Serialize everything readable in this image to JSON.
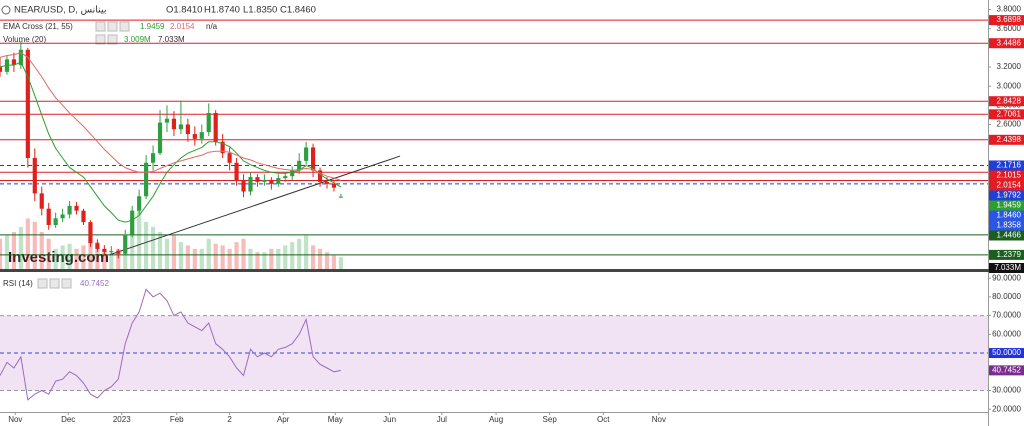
{
  "chart_data": [
    {
      "type": "candlestick",
      "title": "NEAR/USD, D, بينانس",
      "ohlc_legend": [
        "O1.8410",
        "H1.8740",
        "L1.8350",
        "C1.8460"
      ],
      "up_color": "#2e9e41",
      "down_color": "#e0201b",
      "candles": [
        [
          3.2,
          3.3,
          3.1,
          3.15
        ],
        [
          3.15,
          3.32,
          3.12,
          3.28
        ],
        [
          3.28,
          3.35,
          3.15,
          3.22
        ],
        [
          3.22,
          3.47,
          3.18,
          3.38
        ],
        [
          3.38,
          3.4,
          2.15,
          2.25
        ],
        [
          2.25,
          2.35,
          1.8,
          1.88
        ],
        [
          1.88,
          1.95,
          1.65,
          1.72
        ],
        [
          1.72,
          1.78,
          1.5,
          1.55
        ],
        [
          1.55,
          1.68,
          1.52,
          1.62
        ],
        [
          1.62,
          1.72,
          1.58,
          1.66
        ],
        [
          1.66,
          1.8,
          1.62,
          1.75
        ],
        [
          1.75,
          1.79,
          1.66,
          1.7
        ],
        [
          1.7,
          1.72,
          1.55,
          1.58
        ],
        [
          1.58,
          1.6,
          1.32,
          1.36
        ],
        [
          1.36,
          1.4,
          1.27,
          1.3
        ],
        [
          1.3,
          1.34,
          1.24,
          1.27
        ],
        [
          1.27,
          1.33,
          1.23,
          1.28
        ],
        [
          1.28,
          1.3,
          1.2,
          1.25
        ],
        [
          1.25,
          1.5,
          1.24,
          1.45
        ],
        [
          1.45,
          1.75,
          1.42,
          1.7
        ],
        [
          1.7,
          1.92,
          1.66,
          1.85
        ],
        [
          1.85,
          2.28,
          1.82,
          2.2
        ],
        [
          2.2,
          2.38,
          2.12,
          2.3
        ],
        [
          2.3,
          2.75,
          2.28,
          2.62
        ],
        [
          2.62,
          2.8,
          2.52,
          2.66
        ],
        [
          2.66,
          2.74,
          2.48,
          2.55
        ],
        [
          2.55,
          2.85,
          2.5,
          2.6
        ],
        [
          2.6,
          2.66,
          2.42,
          2.5
        ],
        [
          2.5,
          2.58,
          2.38,
          2.45
        ],
        [
          2.45,
          2.6,
          2.4,
          2.52
        ],
        [
          2.52,
          2.82,
          2.48,
          2.72
        ],
        [
          2.72,
          2.75,
          2.38,
          2.42
        ],
        [
          2.42,
          2.5,
          2.25,
          2.3
        ],
        [
          2.3,
          2.36,
          2.12,
          2.2
        ],
        [
          2.2,
          2.25,
          1.96,
          2.02
        ],
        [
          2.02,
          2.08,
          1.84,
          1.9
        ],
        [
          1.9,
          2.1,
          1.86,
          2.05
        ],
        [
          2.05,
          2.08,
          1.95,
          2.0
        ],
        [
          2.0,
          2.08,
          1.96,
          2.02
        ],
        [
          2.02,
          2.05,
          1.92,
          1.98
        ],
        [
          1.98,
          2.08,
          1.95,
          2.04
        ],
        [
          2.04,
          2.1,
          2.0,
          2.06
        ],
        [
          2.06,
          2.16,
          2.02,
          2.12
        ],
        [
          2.12,
          2.3,
          2.08,
          2.22
        ],
        [
          2.22,
          2.42,
          2.18,
          2.36
        ],
        [
          2.36,
          2.4,
          2.05,
          2.12
        ],
        [
          2.12,
          2.15,
          1.95,
          2.0
        ],
        [
          2.0,
          2.05,
          1.93,
          1.98
        ],
        [
          1.98,
          2.02,
          1.9,
          1.94
        ],
        [
          1.841,
          1.874,
          1.835,
          1.846
        ]
      ],
      "ema": {
        "name": "EMA Cross (21, 55)",
        "status": "n/a",
        "series": [
          {
            "color": "#2ca02c",
            "value_label": "1.9459",
            "values": [
              3.2,
              3.22,
              3.22,
              3.25,
              3.1,
              2.9,
              2.7,
              2.5,
              2.35,
              2.25,
              2.15,
              2.1,
              2.05,
              1.95,
              1.85,
              1.75,
              1.68,
              1.6,
              1.58,
              1.6,
              1.65,
              1.75,
              1.85,
              1.98,
              2.1,
              2.18,
              2.25,
              2.3,
              2.33,
              2.36,
              2.42,
              2.42,
              2.4,
              2.37,
              2.3,
              2.22,
              2.18,
              2.15,
              2.12,
              2.1,
              2.09,
              2.09,
              2.1,
              2.12,
              2.17,
              2.14,
              2.08,
              2.03,
              1.99,
              1.9459
            ]
          },
          {
            "color": "#e06a6a",
            "value_label": "2.0154",
            "values": [
              3.3,
              3.32,
              3.33,
              3.35,
              3.3,
              3.2,
              3.1,
              2.98,
              2.88,
              2.8,
              2.72,
              2.65,
              2.58,
              2.5,
              2.42,
              2.34,
              2.27,
              2.2,
              2.15,
              2.12,
              2.1,
              2.1,
              2.11,
              2.14,
              2.17,
              2.2,
              2.22,
              2.24,
              2.26,
              2.28,
              2.31,
              2.32,
              2.32,
              2.31,
              2.28,
              2.25,
              2.23,
              2.2,
              2.18,
              2.16,
              2.14,
              2.13,
              2.12,
              2.13,
              2.14,
              2.13,
              2.09,
              2.06,
              2.04,
              2.0154
            ]
          }
        ]
      },
      "volume": {
        "name": "Volume (20)",
        "labels": [
          "3.009M",
          "7.033M"
        ],
        "ylim": [
          0,
          160
        ],
        "values": [
          18,
          20,
          22,
          25,
          30,
          28,
          22,
          18,
          12,
          14,
          15,
          12,
          14,
          18,
          16,
          12,
          10,
          12,
          20,
          30,
          35,
          28,
          25,
          22,
          18,
          20,
          16,
          14,
          12,
          12,
          18,
          15,
          14,
          12,
          16,
          18,
          12,
          10,
          10,
          12,
          12,
          14,
          16,
          18,
          20,
          14,
          12,
          10,
          8,
          7.033
        ]
      },
      "trendline": {
        "x": [
          15.8,
          57.5
        ],
        "y": [
          1.24,
          2.27
        ],
        "color": "#333333"
      },
      "watermark": "Investing.com",
      "xlim": [
        0,
        142
      ],
      "ylim": [
        1.08,
        3.9
      ],
      "yticks": [
        {
          "value": 3.8,
          "label": "3.8000"
        },
        {
          "value": 3.6,
          "label": "3.6000"
        },
        {
          "value": 3.2,
          "label": "3.2000"
        },
        {
          "value": 3.0,
          "label": "3.0000"
        },
        {
          "value": 2.8,
          "label": "2.8000"
        },
        {
          "value": 2.6,
          "label": "2.6000"
        }
      ],
      "levels": [
        {
          "value": 3.6898,
          "label": "3.6898",
          "color": "#e31b23",
          "line": "solid"
        },
        {
          "value": 3.4486,
          "label": "3.4486",
          "color": "#e31b23",
          "line": "solid"
        },
        {
          "value": 2.8428,
          "label": "2.8428",
          "color": "#e31b23",
          "line": "solid"
        },
        {
          "value": 2.7061,
          "label": "2.7061",
          "color": "#e31b23",
          "line": "solid"
        },
        {
          "value": 2.4398,
          "label": "2.4398",
          "color": "#e31b23",
          "line": "solid"
        },
        {
          "value": 2.1716,
          "label": "2.1716",
          "color": "#1f3fd6",
          "line": "dashed"
        },
        {
          "value": 2.1015,
          "label": "2.1015",
          "color": "#e31b23",
          "line": "solid"
        },
        {
          "value": 2.0154,
          "label": "2.0154",
          "color": "#e31b23",
          "line": "solid"
        },
        {
          "value": 1.9792,
          "label": "1.9792",
          "color": "#1f3fd6",
          "line": "dashed"
        },
        {
          "value": 1.9459,
          "label": "1.9459",
          "color": "#2ca02c",
          "line": "none"
        },
        {
          "value": 1.846,
          "label": "1.8460",
          "color": "#2a55e5",
          "line": "none"
        },
        {
          "value": 1.8358,
          "label": "1.8358",
          "color": "#2a55e5",
          "line": "none"
        },
        {
          "value": 1.4466,
          "label": "1.4466",
          "color": "#1b5e20",
          "line": "solid"
        },
        {
          "value": 1.2379,
          "label": "1.2379",
          "color": "#1b5e20",
          "line": "solid"
        }
      ]
    },
    {
      "type": "line",
      "name": "RSI (14)",
      "value_label": "40.7452",
      "color": "#9a6cc0",
      "values": [
        38,
        45,
        42,
        48,
        25,
        28,
        30,
        28,
        35,
        36,
        40,
        38,
        34,
        28,
        26,
        30,
        32,
        36,
        55,
        66,
        72,
        84,
        80,
        82,
        78,
        70,
        72,
        66,
        64,
        62,
        66,
        55,
        52,
        48,
        42,
        38,
        52,
        48,
        50,
        48,
        52,
        53,
        55,
        60,
        68,
        48,
        44,
        42,
        40,
        40.7452
      ],
      "ylim": [
        18.5,
        93.3
      ],
      "yticks": [
        {
          "value": 90,
          "label": "90.0000"
        },
        {
          "value": 80,
          "label": "80.0000"
        },
        {
          "value": 70,
          "label": "70.0000"
        },
        {
          "value": 60,
          "label": "60.0000"
        },
        {
          "value": 50,
          "label": "50.0000"
        },
        {
          "value": 30,
          "label": "30.0000"
        },
        {
          "value": 20,
          "label": "20.0000"
        }
      ],
      "levels": [
        70,
        50,
        30
      ],
      "band_color": "#f1e3f4",
      "xlim": [
        0,
        142
      ],
      "xticks": [
        {
          "value": 2.2,
          "label": "Nov"
        },
        {
          "value": 9.8,
          "label": "Dec"
        },
        {
          "value": 17.5,
          "label": "2023"
        },
        {
          "value": 25.4,
          "label": "Feb"
        },
        {
          "value": 33,
          "label": "2"
        },
        {
          "value": 40.7,
          "label": "Apr"
        },
        {
          "value": 48.2,
          "label": "May"
        },
        {
          "value": 56,
          "label": "Jun"
        },
        {
          "value": 63.5,
          "label": "Jul"
        },
        {
          "value": 71.3,
          "label": "Aug"
        },
        {
          "value": 79,
          "label": "Sep"
        },
        {
          "value": 86.7,
          "label": "Oct"
        },
        {
          "value": 94.7,
          "label": "Nov"
        }
      ]
    }
  ]
}
